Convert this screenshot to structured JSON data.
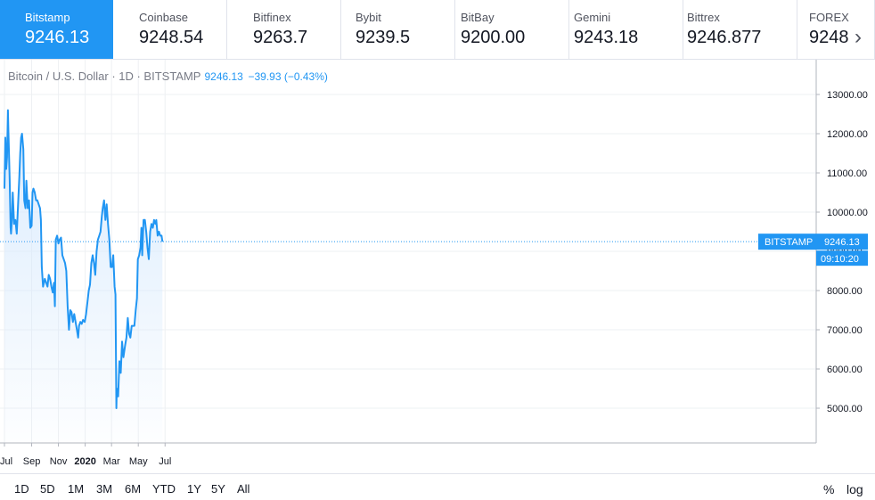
{
  "tabs": [
    {
      "name": "Bitstamp",
      "value": "9246.13"
    },
    {
      "name": "Coinbase",
      "value": "9248.54"
    },
    {
      "name": "Bitfinex",
      "value": "9263.7"
    },
    {
      "name": "Bybit",
      "value": "9239.5"
    },
    {
      "name": "BitBay",
      "value": "9200.00"
    },
    {
      "name": "Gemini",
      "value": "9243.18"
    },
    {
      "name": "Bittrex",
      "value": "9246.877"
    },
    {
      "name": "FOREX",
      "value": "9248"
    }
  ],
  "next_icon": "chevron-right-icon",
  "legend": {
    "title": "Bitcoin / U.S. Dollar · 1D · BITSTAMP",
    "value": "9246.13",
    "change": "−39.93 (−0.43%)"
  },
  "price_label": {
    "name": "BITSTAMP",
    "value": "9246.13",
    "time": "09:10:20"
  },
  "bottom": {
    "periods": [
      "1D",
      "5D",
      "1M",
      "3M",
      "6M",
      "YTD",
      "1Y",
      "5Y",
      "All"
    ],
    "percent_label": "%",
    "log_label": "log"
  },
  "colors": {
    "accent": "#2196f3",
    "line": "#2196f3",
    "fill": "#d8eafd"
  },
  "chart_data": {
    "type": "area",
    "title": "Bitcoin / U.S. Dollar",
    "xlabel": "",
    "ylabel": "",
    "ylim": [
      4200,
      13800
    ],
    "x_ticks": [
      "Jul",
      "Sep",
      "Nov",
      "2020",
      "Mar",
      "May",
      "Jul"
    ],
    "x_tick_dates": [
      "2019-07-01",
      "2019-09-01",
      "2019-11-01",
      "2020-01-01",
      "2020-03-01",
      "2020-05-01",
      "2020-07-01"
    ],
    "y_ticks": [
      5000,
      6000,
      7000,
      8000,
      9000,
      10000,
      11000,
      12000,
      13000
    ],
    "y_tick_labels": [
      "5000.00",
      "6000.00",
      "7000.00",
      "8000.00",
      "9000.00",
      "10000.00",
      "11000.00",
      "12000.00",
      "13000.00"
    ],
    "grid": true,
    "last_value": 9246.13,
    "series": [
      {
        "x": [
          "2019-07-01",
          "2019-07-03",
          "2019-07-05",
          "2019-07-07",
          "2019-07-09",
          "2019-07-10",
          "2019-07-13",
          "2019-07-15",
          "2019-07-16",
          "2019-07-18",
          "2019-07-20",
          "2019-07-23",
          "2019-07-26",
          "2019-07-29",
          "2019-08-01",
          "2019-08-04",
          "2019-08-06",
          "2019-08-08",
          "2019-08-10",
          "2019-08-13",
          "2019-08-15",
          "2019-08-18",
          "2019-08-20",
          "2019-08-23",
          "2019-08-26",
          "2019-08-29",
          "2019-09-01",
          "2019-09-03",
          "2019-09-05",
          "2019-09-08",
          "2019-09-11",
          "2019-09-14",
          "2019-09-17",
          "2019-09-20",
          "2019-09-22",
          "2019-09-24",
          "2019-09-27",
          "2019-10-01",
          "2019-10-04",
          "2019-10-07",
          "2019-10-10",
          "2019-10-13",
          "2019-10-16",
          "2019-10-19",
          "2019-10-22",
          "2019-10-24",
          "2019-10-26",
          "2019-10-29",
          "2019-11-01",
          "2019-11-04",
          "2019-11-07",
          "2019-11-10",
          "2019-11-13",
          "2019-11-16",
          "2019-11-19",
          "2019-11-22",
          "2019-11-25",
          "2019-11-28",
          "2019-12-01",
          "2019-12-04",
          "2019-12-07",
          "2019-12-10",
          "2019-12-13",
          "2019-12-16",
          "2019-12-18",
          "2019-12-21",
          "2019-12-24",
          "2019-12-27",
          "2019-12-31",
          "2020-01-03",
          "2020-01-06",
          "2020-01-09",
          "2020-01-12",
          "2020-01-15",
          "2020-01-18",
          "2020-01-21",
          "2020-01-24",
          "2020-01-27",
          "2020-01-30",
          "2020-02-02",
          "2020-02-05",
          "2020-02-08",
          "2020-02-10",
          "2020-02-13",
          "2020-02-16",
          "2020-02-19",
          "2020-02-22",
          "2020-02-25",
          "2020-02-28",
          "2020-03-02",
          "2020-03-05",
          "2020-03-08",
          "2020-03-10",
          "2020-03-12",
          "2020-03-13",
          "2020-03-16",
          "2020-03-19",
          "2020-03-22",
          "2020-03-25",
          "2020-03-28",
          "2020-04-01",
          "2020-04-04",
          "2020-04-07",
          "2020-04-10",
          "2020-04-13",
          "2020-04-16",
          "2020-04-19",
          "2020-04-22",
          "2020-04-25",
          "2020-04-28",
          "2020-04-30",
          "2020-05-03",
          "2020-05-06",
          "2020-05-08",
          "2020-05-10",
          "2020-05-13",
          "2020-05-16",
          "2020-05-19",
          "2020-05-22",
          "2020-05-25",
          "2020-05-28",
          "2020-05-31",
          "2020-06-03",
          "2020-06-06",
          "2020-06-09",
          "2020-06-11",
          "2020-06-14",
          "2020-06-17",
          "2020-06-20",
          "2020-06-23",
          "2020-06-25"
        ],
        "values": [
          10600,
          11900,
          11100,
          11400,
          12600,
          12100,
          10800,
          9600,
          9450,
          9800,
          10500,
          9700,
          9800,
          9450,
          10200,
          10900,
          11500,
          11900,
          12000,
          11600,
          10300,
          10100,
          10800,
          10100,
          10300,
          9600,
          9650,
          10500,
          10600,
          10500,
          10300,
          10300,
          10200,
          10100,
          9800,
          8600,
          8100,
          8300,
          8200,
          8100,
          8400,
          8300,
          8100,
          7950,
          8200,
          7600,
          9300,
          9400,
          9200,
          9300,
          9350,
          8900,
          8800,
          8700,
          8500,
          7600,
          7000,
          7500,
          7450,
          7200,
          7400,
          7200,
          7000,
          6800,
          7100,
          7200,
          7150,
          7250,
          7200,
          7400,
          7700,
          8000,
          8150,
          8700,
          8900,
          8700,
          8400,
          9000,
          9300,
          9400,
          9500,
          9900,
          10100,
          10300,
          9800,
          10200,
          9700,
          9300,
          8600,
          8600,
          8900,
          8100,
          7900,
          5000,
          5500,
          5300,
          6200,
          5900,
          6700,
          6300,
          6600,
          6800,
          7300,
          6900,
          6800,
          7100,
          7100,
          7100,
          7500,
          7800,
          8800,
          8900,
          9100,
          9600,
          8900,
          9800,
          9800,
          9500,
          9100,
          8800,
          9500,
          9700,
          9600,
          9800,
          9700,
          9800,
          9400,
          9500,
          9400,
          9400,
          9246.13
        ]
      }
    ]
  }
}
